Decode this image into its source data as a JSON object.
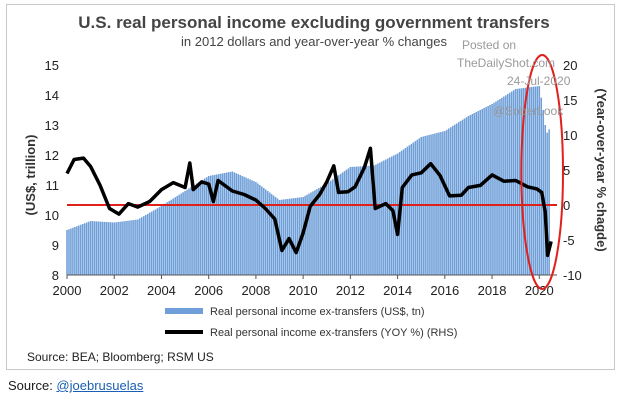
{
  "chart_data": {
    "type": "bar",
    "title": "U.S. real personal income excluding government transfers",
    "subtitle": "in 2012 dollars and year-over-year % changes",
    "ylabel": "(US$, trillion)",
    "y2label": "(Year-over-year % chagde)",
    "ylim": [
      8,
      15
    ],
    "y2lim": [
      -10,
      20
    ],
    "xlim": [
      2000,
      2020.75
    ],
    "xticks": [
      2000,
      2002,
      2004,
      2006,
      2008,
      2010,
      2012,
      2014,
      2016,
      2018,
      2020
    ],
    "yticks": [
      8,
      9,
      10,
      11,
      12,
      13,
      14,
      15
    ],
    "y2ticks": [
      -10,
      -5,
      0,
      5,
      10,
      15,
      20
    ],
    "reference_line": {
      "axis": "y2",
      "value": 0,
      "color": "#e0201b"
    },
    "annotation": {
      "shape": "ellipse",
      "color": "#e0201b",
      "x_range": [
        2019.5,
        2020.75
      ]
    },
    "series": [
      {
        "name": "Real personal income ex-transfers (US$, tn)",
        "kind": "bar",
        "axis": "y",
        "color": "#6f9fd8",
        "points": [
          [
            2000,
            9.5
          ],
          [
            2001,
            9.8
          ],
          [
            2002,
            9.75
          ],
          [
            2003,
            9.85
          ],
          [
            2004,
            10.3
          ],
          [
            2005,
            10.8
          ],
          [
            2006,
            11.3
          ],
          [
            2007,
            11.45
          ],
          [
            2008,
            11.1
          ],
          [
            2009,
            10.5
          ],
          [
            2010,
            10.6
          ],
          [
            2011,
            11.05
          ],
          [
            2012,
            11.6
          ],
          [
            2013,
            11.65
          ],
          [
            2014,
            12.05
          ],
          [
            2015,
            12.6
          ],
          [
            2016,
            12.8
          ],
          [
            2017,
            13.3
          ],
          [
            2018,
            13.7
          ],
          [
            2019,
            14.2
          ],
          [
            2020.0,
            14.3
          ],
          [
            2020.15,
            13.6
          ],
          [
            2020.3,
            12.7
          ],
          [
            2020.45,
            12.9
          ]
        ]
      },
      {
        "name": "Real personal income ex-transfers (YOY %) (RHS)",
        "kind": "line",
        "axis": "y2",
        "color": "#000000",
        "points": [
          [
            2000,
            4.5
          ],
          [
            2000.3,
            6.5
          ],
          [
            2000.7,
            6.7
          ],
          [
            2001,
            5.5
          ],
          [
            2001.4,
            2.8
          ],
          [
            2001.8,
            -0.5
          ],
          [
            2002.2,
            -1.3
          ],
          [
            2002.6,
            0.2
          ],
          [
            2003,
            -0.3
          ],
          [
            2003.5,
            0.5
          ],
          [
            2004,
            2.2
          ],
          [
            2004.5,
            3.2
          ],
          [
            2005,
            2.5
          ],
          [
            2005.2,
            6
          ],
          [
            2005.35,
            2.2
          ],
          [
            2005.7,
            3.3
          ],
          [
            2006,
            3
          ],
          [
            2006.2,
            0.5
          ],
          [
            2006.4,
            3.5
          ],
          [
            2007,
            2
          ],
          [
            2007.5,
            1.5
          ],
          [
            2008,
            0.7
          ],
          [
            2008.4,
            -0.5
          ],
          [
            2008.8,
            -2
          ],
          [
            2009.1,
            -6.5
          ],
          [
            2009.4,
            -4.8
          ],
          [
            2009.7,
            -6.8
          ],
          [
            2010,
            -4
          ],
          [
            2010.3,
            -0.2
          ],
          [
            2010.7,
            1.5
          ],
          [
            2011,
            3.3
          ],
          [
            2011.3,
            5.6
          ],
          [
            2011.5,
            1.8
          ],
          [
            2011.9,
            1.9
          ],
          [
            2012.2,
            2.6
          ],
          [
            2012.6,
            5.4
          ],
          [
            2012.85,
            8.1
          ],
          [
            2013.05,
            -0.5
          ],
          [
            2013.5,
            0.2
          ],
          [
            2013.8,
            -0.8
          ],
          [
            2014.0,
            -4.2
          ],
          [
            2014.2,
            2.5
          ],
          [
            2014.6,
            4.3
          ],
          [
            2015,
            4.6
          ],
          [
            2015.4,
            5.9
          ],
          [
            2015.8,
            4.2
          ],
          [
            2016.2,
            1.3
          ],
          [
            2016.7,
            1.4
          ],
          [
            2017,
            2.5
          ],
          [
            2017.5,
            2.8
          ],
          [
            2018,
            4.3
          ],
          [
            2018.5,
            3.4
          ],
          [
            2019,
            3.5
          ],
          [
            2019.5,
            2.6
          ],
          [
            2019.9,
            2.3
          ],
          [
            2020.1,
            1.8
          ],
          [
            2020.25,
            -1
          ],
          [
            2020.35,
            -7.2
          ],
          [
            2020.5,
            -5.2
          ]
        ]
      }
    ]
  },
  "watermark": {
    "line1": "Posted on",
    "line2": "TheDailyShot.com",
    "line3": "24-Jul-2020",
    "line4": "@SoberLook"
  },
  "legend": [
    {
      "label": "Real personal income ex-transfers (US$, tn)",
      "color": "#6f9fd8",
      "kind": "bar"
    },
    {
      "label": "Real personal income ex-transfers (YOY %) (RHS)",
      "color": "#000000",
      "kind": "line"
    }
  ],
  "chart_source": "Source: BEA; Bloomberg; RSM US",
  "page_source": {
    "prefix": "Source: ",
    "handle": "@joebrusuelas"
  }
}
